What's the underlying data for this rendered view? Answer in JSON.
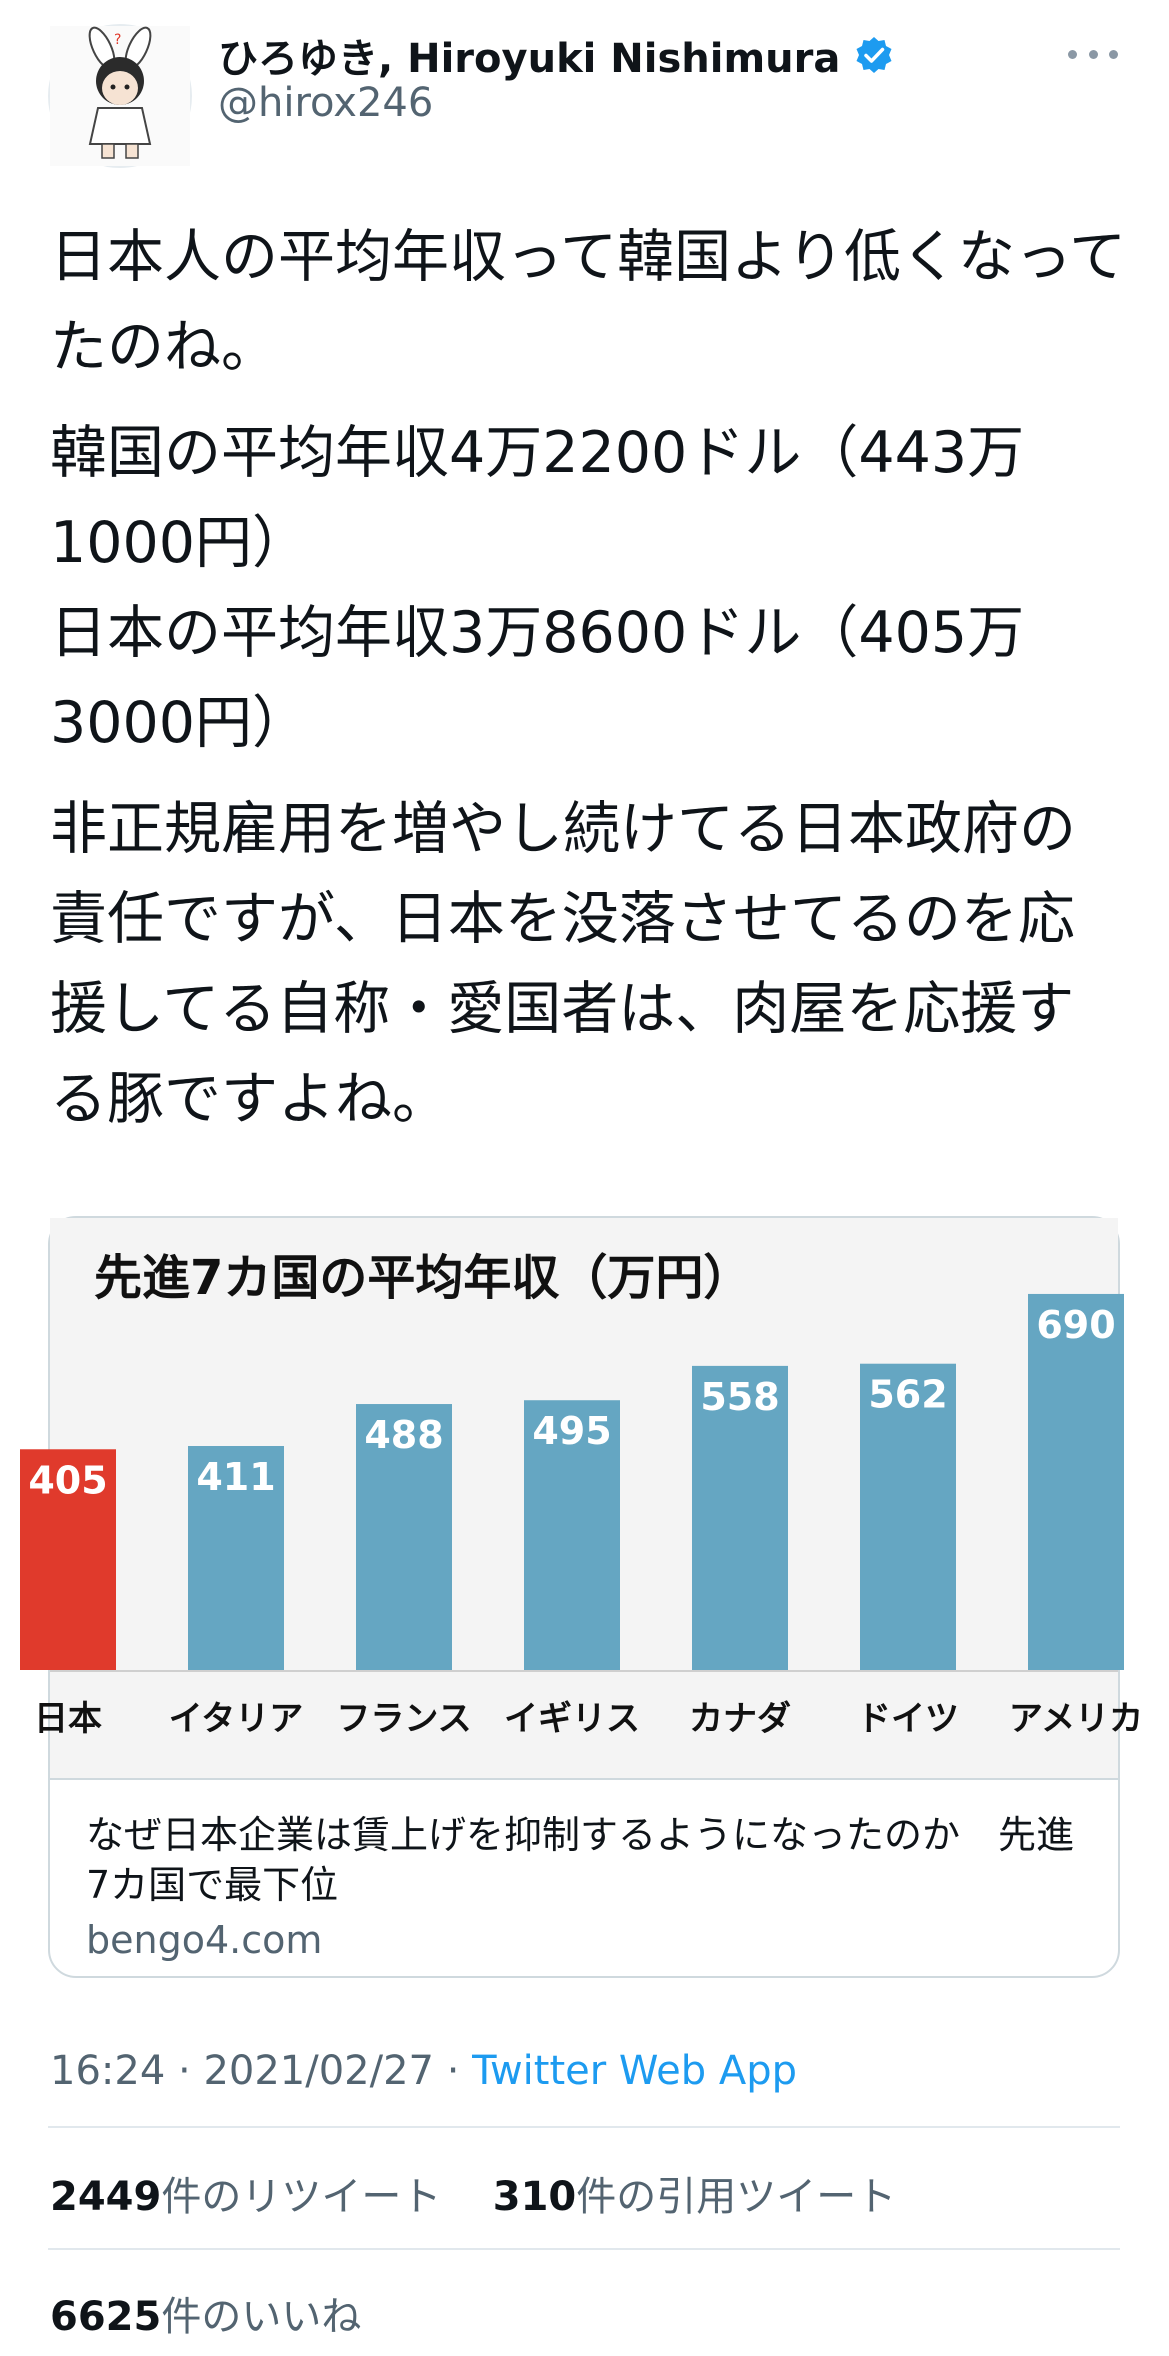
{
  "user": {
    "display_name": "ひろゆき, Hiroyuki Nishimura",
    "handle": "@hirox246",
    "verified_color": "#1d9bf0",
    "avatar_icon": "cartoon-character-avatar"
  },
  "tweet": {
    "paragraphs": [
      "日本人の平均年収って韓国より低くなってたのね。",
      "韓国の平均年収4万2200ドル（443万1000円）\n日本の平均年収3万8600ドル（405万3000円）",
      "非正規雇用を増やし続けてる日本政府の責任ですが、日本を没落させてるのを応援してる自称・愛国者は、肉屋を応援する豚ですよね。"
    ]
  },
  "card": {
    "title": "なぜ日本企業は賃上げを抑制するようになったのか　先進7カ国で最下位",
    "domain": "bengo4.com"
  },
  "chart_data": {
    "type": "bar",
    "title": "先進7カ国の平均年収（万円）",
    "categories": [
      "日本",
      "イタリア",
      "フランス",
      "イギリス",
      "カナダ",
      "ドイツ",
      "アメリカ"
    ],
    "values": [
      405,
      411,
      488,
      495,
      558,
      562,
      690
    ],
    "colors": [
      "#e03a2c",
      "#65a6c2",
      "#65a6c2",
      "#65a6c2",
      "#65a6c2",
      "#65a6c2",
      "#65a6c2"
    ],
    "label_color": "#ffffff",
    "grid": false
  },
  "footer": {
    "time": "16:24",
    "date": "2021/02/27",
    "app": "Twitter Web App",
    "retweets": "2449",
    "retweets_label": "件のリツイート",
    "quotes": "310",
    "quotes_label": "件の引用ツイート",
    "likes": "6625",
    "likes_label": "件のいいね"
  }
}
